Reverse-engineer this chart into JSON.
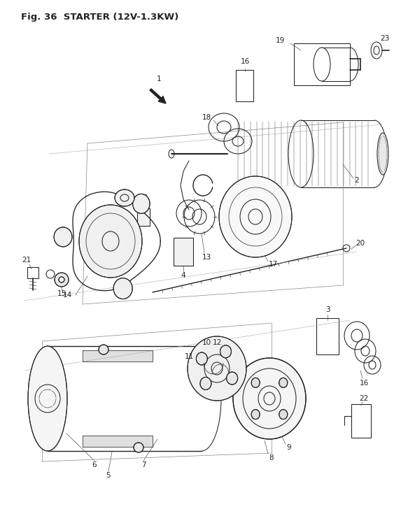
{
  "title": "Fig. 36  STARTER (12V-1.3KW)",
  "bg_color": "#ffffff",
  "line_color": "#222222",
  "lw": 0.75,
  "label_fs": 7.5,
  "figsize": [
    5.73,
    7.48
  ],
  "dpi": 100
}
